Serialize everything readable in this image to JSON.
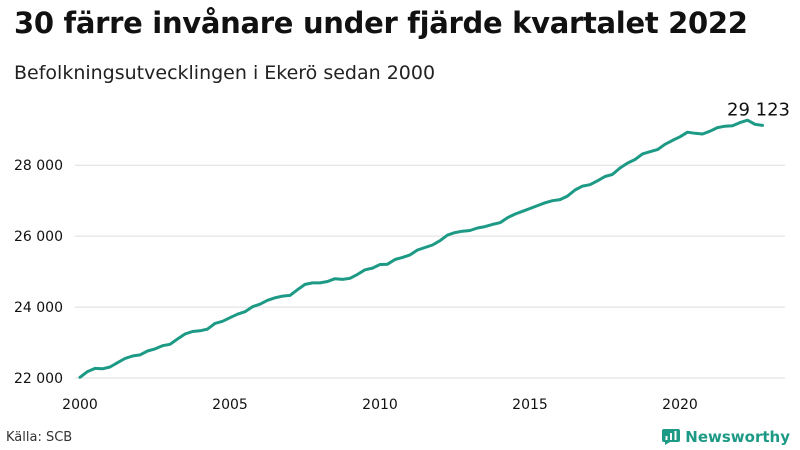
{
  "title": "30 färre invånare under fjärde kvartalet 2022",
  "subtitle": "Befolkningsutvecklingen i Ekerö sedan 2000",
  "source": "Källa: SCB",
  "brand": {
    "name": "Newsworthy",
    "icon": "bar-chart-icon"
  },
  "colors": {
    "line": "#1d9a85",
    "grid": "#dddddd",
    "text": "#111111"
  },
  "chart_data": {
    "type": "line",
    "title": "",
    "xlabel": "",
    "ylabel": "",
    "xlim": [
      2000,
      2023.5
    ],
    "ylim": [
      22000,
      29500
    ],
    "x_ticks": [
      2000,
      2005,
      2010,
      2015,
      2020
    ],
    "x_tick_labels": [
      "2000",
      "2005",
      "2010",
      "2015",
      "2020"
    ],
    "y_ticks": [
      22000,
      24000,
      26000,
      28000
    ],
    "y_tick_labels": [
      "22 000",
      "24 000",
      "26 000",
      "28 000"
    ],
    "grid": "horizontal",
    "annotation": {
      "x": 2022.75,
      "y": 29123,
      "label": "29 123"
    },
    "series": [
      {
        "x": [
          2000.0,
          2000.25,
          2000.5,
          2000.75,
          2001.0,
          2001.25,
          2001.5,
          2001.75,
          2002.0,
          2002.25,
          2002.5,
          2002.75,
          2003.0,
          2003.25,
          2003.5,
          2003.75,
          2004.0,
          2004.25,
          2004.5,
          2004.75,
          2005.0,
          2005.25,
          2005.5,
          2005.75,
          2006.0,
          2006.25,
          2006.5,
          2006.75,
          2007.0,
          2007.25,
          2007.5,
          2007.75,
          2008.0,
          2008.25,
          2008.5,
          2008.75,
          2009.0,
          2009.25,
          2009.5,
          2009.75,
          2010.0,
          2010.25,
          2010.5,
          2010.75,
          2011.0,
          2011.25,
          2011.5,
          2011.75,
          2012.0,
          2012.25,
          2012.5,
          2012.75,
          2013.0,
          2013.25,
          2013.5,
          2013.75,
          2014.0,
          2014.25,
          2014.5,
          2014.75,
          2015.0,
          2015.25,
          2015.5,
          2015.75,
          2016.0,
          2016.25,
          2016.5,
          2016.75,
          2017.0,
          2017.25,
          2017.5,
          2017.75,
          2018.0,
          2018.25,
          2018.5,
          2018.75,
          2019.0,
          2019.25,
          2019.5,
          2019.75,
          2020.0,
          2020.25,
          2020.5,
          2020.75,
          2021.0,
          2021.25,
          2021.5,
          2021.75,
          2022.0,
          2022.25,
          2022.5,
          2022.75
        ],
        "values": [
          22020,
          22180,
          22270,
          22260,
          22310,
          22430,
          22550,
          22620,
          22650,
          22760,
          22820,
          22910,
          22950,
          23100,
          23240,
          23310,
          23330,
          23380,
          23540,
          23600,
          23700,
          23800,
          23870,
          24010,
          24080,
          24190,
          24260,
          24310,
          24330,
          24490,
          24640,
          24680,
          24680,
          24720,
          24800,
          24780,
          24810,
          24920,
          25050,
          25100,
          25200,
          25210,
          25340,
          25400,
          25470,
          25610,
          25680,
          25750,
          25870,
          26030,
          26100,
          26140,
          26160,
          26230,
          26270,
          26330,
          26380,
          26520,
          26620,
          26700,
          26780,
          26860,
          26940,
          27000,
          27030,
          27130,
          27300,
          27410,
          27450,
          27560,
          27680,
          27740,
          27920,
          28060,
          28160,
          28320,
          28380,
          28440,
          28590,
          28700,
          28800,
          28930,
          28900,
          28880,
          28960,
          29060,
          29100,
          29110,
          29200,
          29270,
          29153,
          29123
        ]
      }
    ]
  }
}
